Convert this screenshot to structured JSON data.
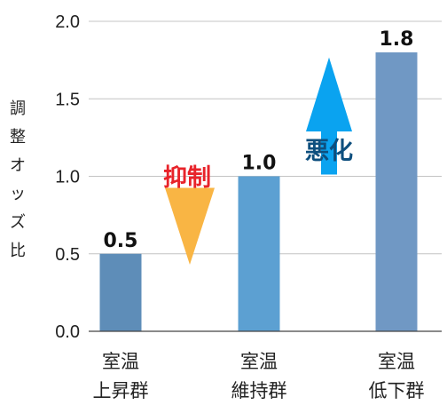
{
  "chart_data": {
    "type": "bar",
    "categories": [
      [
        "室温",
        "上昇群"
      ],
      [
        "室温",
        "維持群"
      ],
      [
        "室温",
        "低下群"
      ]
    ],
    "values": [
      0.5,
      1.0,
      1.8
    ],
    "value_labels": [
      "0.5",
      "1.0",
      "1.8"
    ],
    "bar_colors": [
      "#5e8db8",
      "#5ca0d2",
      "#7098c4"
    ],
    "ylabel": "調整オッズ比",
    "ylim": [
      0,
      2.0
    ],
    "yticks": [
      0.0,
      0.5,
      1.0,
      1.5,
      2.0
    ],
    "ytick_labels": [
      "0.0",
      "0.5",
      "1.0",
      "1.5",
      "2.0"
    ],
    "grid": true,
    "annotations": [
      {
        "text": "抑制",
        "direction": "down",
        "arrow_color": "#f9b544",
        "text_color": "#e8232a",
        "y_from": 1.0,
        "y_to": 0.43
      },
      {
        "text": "悪化",
        "direction": "up",
        "arrow_color": "#0aa3f0",
        "text_color": "#0e4f7e",
        "y_from": 1.0,
        "y_to": 1.75
      }
    ]
  }
}
